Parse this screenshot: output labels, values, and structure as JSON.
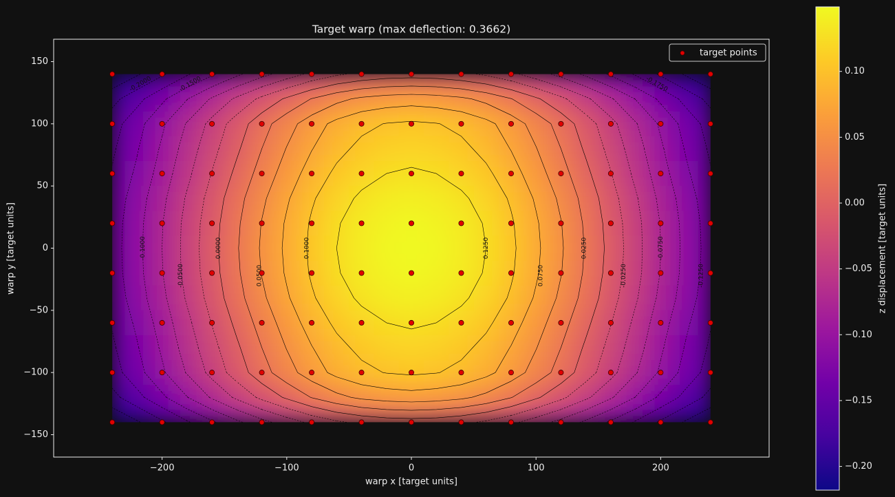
{
  "chart_data": {
    "type": "contour",
    "title": "Target warp  (max deflection: 0.3662)",
    "xlabel": "warp x [target units]",
    "ylabel": "warp y [target units]",
    "xlim": [
      -287,
      287
    ],
    "ylim": [
      -168,
      168
    ],
    "xticks": [
      {
        "value": -200,
        "label": "−200"
      },
      {
        "value": -100,
        "label": "−100"
      },
      0,
      100,
      200
    ],
    "yticks": [
      {
        "value": -150,
        "label": "−150"
      },
      {
        "value": -100,
        "label": "−100"
      },
      {
        "value": -50,
        "label": "−50"
      },
      0,
      50,
      100,
      150
    ],
    "legend": "upper right",
    "heatmap": {
      "x": [
        -240,
        -220,
        -200,
        -180,
        -160,
        -140,
        -120,
        -100,
        -80,
        -60,
        -40,
        -20,
        0,
        20,
        40,
        60,
        80,
        100,
        120,
        140,
        160,
        180,
        200,
        220,
        240
      ],
      "y": [
        140,
        120,
        100,
        80,
        60,
        40,
        20,
        0,
        -20,
        -40,
        -60,
        -80,
        -100,
        -120,
        -140
      ],
      "values": [
        [
          -0.224,
          -0.203,
          -0.179,
          -0.153,
          -0.129,
          -0.105,
          -0.083,
          -0.063,
          -0.044,
          -0.029,
          -0.019,
          -0.013,
          -0.011,
          -0.013,
          -0.019,
          -0.029,
          -0.044,
          -0.063,
          -0.083,
          -0.105,
          -0.129,
          -0.153,
          -0.179,
          -0.203,
          -0.224
        ],
        [
          -0.183,
          -0.158,
          -0.13,
          -0.101,
          -0.072,
          -0.045,
          -0.019,
          0.004,
          0.026,
          0.043,
          0.055,
          0.061,
          0.064,
          0.061,
          0.055,
          0.043,
          0.026,
          0.004,
          -0.019,
          -0.045,
          -0.072,
          -0.101,
          -0.13,
          -0.158,
          -0.183
        ],
        [
          -0.161,
          -0.134,
          -0.104,
          -0.073,
          -0.042,
          -0.013,
          0.015,
          0.04,
          0.063,
          0.082,
          0.094,
          0.101,
          0.104,
          0.101,
          0.094,
          0.082,
          0.063,
          0.04,
          0.015,
          -0.013,
          -0.042,
          -0.073,
          -0.104,
          -0.134,
          -0.161
        ],
        [
          -0.154,
          -0.127,
          -0.096,
          -0.064,
          -0.033,
          -0.004,
          0.025,
          0.051,
          0.074,
          0.093,
          0.106,
          0.113,
          0.116,
          0.113,
          0.106,
          0.093,
          0.074,
          0.051,
          0.025,
          -0.004,
          -0.033,
          -0.064,
          -0.096,
          -0.127,
          -0.154
        ],
        [
          -0.148,
          -0.12,
          -0.089,
          -0.056,
          -0.024,
          0.006,
          0.035,
          0.061,
          0.086,
          0.105,
          0.117,
          0.125,
          0.128,
          0.125,
          0.117,
          0.105,
          0.086,
          0.061,
          0.035,
          0.006,
          -0.024,
          -0.056,
          -0.089,
          -0.12,
          -0.148
        ],
        [
          -0.141,
          -0.112,
          -0.081,
          -0.047,
          -0.015,
          0.016,
          0.045,
          0.072,
          0.097,
          0.116,
          0.129,
          0.137,
          0.14,
          0.137,
          0.129,
          0.116,
          0.097,
          0.072,
          0.045,
          0.016,
          -0.015,
          -0.047,
          -0.081,
          -0.112,
          -0.141
        ],
        [
          -0.137,
          -0.108,
          -0.076,
          -0.042,
          -0.01,
          0.021,
          0.051,
          0.078,
          0.103,
          0.123,
          0.136,
          0.144,
          0.147,
          0.144,
          0.136,
          0.123,
          0.103,
          0.078,
          0.051,
          0.021,
          -0.01,
          -0.042,
          -0.076,
          -0.108,
          -0.137
        ],
        [
          -0.136,
          -0.107,
          -0.075,
          -0.041,
          -0.008,
          0.023,
          0.053,
          0.08,
          0.105,
          0.125,
          0.138,
          0.146,
          0.149,
          0.146,
          0.138,
          0.125,
          0.105,
          0.08,
          0.053,
          0.023,
          -0.008,
          -0.041,
          -0.075,
          -0.107,
          -0.136
        ],
        [
          -0.137,
          -0.108,
          -0.076,
          -0.042,
          -0.01,
          0.021,
          0.051,
          0.078,
          0.103,
          0.123,
          0.136,
          0.144,
          0.147,
          0.144,
          0.136,
          0.123,
          0.103,
          0.078,
          0.051,
          0.021,
          -0.01,
          -0.042,
          -0.076,
          -0.108,
          -0.137
        ],
        [
          -0.141,
          -0.112,
          -0.081,
          -0.047,
          -0.015,
          0.016,
          0.045,
          0.072,
          0.097,
          0.116,
          0.129,
          0.137,
          0.14,
          0.137,
          0.129,
          0.116,
          0.097,
          0.072,
          0.045,
          0.016,
          -0.015,
          -0.047,
          -0.081,
          -0.112,
          -0.141
        ],
        [
          -0.148,
          -0.12,
          -0.089,
          -0.056,
          -0.024,
          0.006,
          0.035,
          0.061,
          0.086,
          0.105,
          0.117,
          0.125,
          0.128,
          0.125,
          0.117,
          0.105,
          0.086,
          0.061,
          0.035,
          0.006,
          -0.024,
          -0.056,
          -0.089,
          -0.12,
          -0.148
        ],
        [
          -0.154,
          -0.127,
          -0.096,
          -0.064,
          -0.033,
          -0.004,
          0.025,
          0.051,
          0.074,
          0.093,
          0.106,
          0.113,
          0.116,
          0.113,
          0.106,
          0.093,
          0.074,
          0.051,
          0.025,
          -0.004,
          -0.033,
          -0.064,
          -0.096,
          -0.127,
          -0.154
        ],
        [
          -0.161,
          -0.134,
          -0.104,
          -0.073,
          -0.042,
          -0.013,
          0.015,
          0.04,
          0.063,
          0.082,
          0.094,
          0.101,
          0.104,
          0.101,
          0.094,
          0.082,
          0.063,
          0.04,
          0.015,
          -0.013,
          -0.042,
          -0.073,
          -0.104,
          -0.134,
          -0.161
        ],
        [
          -0.183,
          -0.158,
          -0.13,
          -0.101,
          -0.072,
          -0.045,
          -0.019,
          0.004,
          0.026,
          0.043,
          0.055,
          0.061,
          0.064,
          0.061,
          0.055,
          0.043,
          0.026,
          0.004,
          -0.019,
          -0.045,
          -0.072,
          -0.101,
          -0.13,
          -0.158,
          -0.183
        ],
        [
          -0.224,
          -0.203,
          -0.179,
          -0.153,
          -0.129,
          -0.105,
          -0.083,
          -0.063,
          -0.044,
          -0.029,
          -0.019,
          -0.013,
          -0.011,
          -0.013,
          -0.019,
          -0.029,
          -0.044,
          -0.063,
          -0.083,
          -0.105,
          -0.129,
          -0.153,
          -0.179,
          -0.203,
          -0.224
        ]
      ],
      "colormap": [
        "#0d0887",
        "#46039f",
        "#7201a8",
        "#9c179e",
        "#bd3786",
        "#d8576b",
        "#ed7953",
        "#fb9f3a",
        "#fdca26",
        "#f0f921"
      ],
      "clim": [
        -0.218,
        0.149
      ],
      "colorbar_label": "z displacement [target units]",
      "colorbar_ticks": [
        {
          "value": -0.2,
          "label": "−0.20"
        },
        {
          "value": -0.15,
          "label": "−0.15"
        },
        {
          "value": -0.1,
          "label": "−0.10"
        },
        {
          "value": -0.05,
          "label": "−0.05"
        },
        {
          "value": 0,
          "label": "0.00"
        },
        {
          "value": 0.05,
          "label": "0.05"
        },
        {
          "value": 0.1,
          "label": "0.10"
        }
      ]
    },
    "contour_levels": [
      {
        "value": -0.2,
        "label": "-0.2000"
      },
      {
        "value": -0.175,
        "label": "-0.1750"
      },
      {
        "value": -0.15,
        "label": "-0.1500"
      },
      {
        "value": -0.125,
        "label": "-0.1250"
      },
      {
        "value": -0.1,
        "label": "-0.1000"
      },
      {
        "value": -0.075,
        "label": "-0.0750"
      },
      {
        "value": -0.05,
        "label": "-0.0500"
      },
      {
        "value": -0.025,
        "label": "-0.0250"
      },
      {
        "value": 0,
        "label": "0.0000"
      },
      {
        "value": 0.025,
        "label": "0.0250"
      },
      {
        "value": 0.05,
        "label": "0.0500"
      },
      {
        "value": 0.075,
        "label": "0.0750"
      },
      {
        "value": 0.1,
        "label": "0.1000"
      },
      {
        "value": 0.125,
        "label": "0.1250"
      }
    ],
    "contour_color": "#000000",
    "series": [
      {
        "name": "target points",
        "color": "#e00000",
        "edgecolor": "#3a0000",
        "x": [
          -240,
          -200,
          -160,
          -120,
          -80,
          -40,
          0,
          40,
          80,
          120,
          160,
          200,
          240,
          -240,
          -200,
          -160,
          -120,
          -80,
          -40,
          0,
          40,
          80,
          120,
          160,
          200,
          240,
          -240,
          -200,
          -160,
          -120,
          -80,
          -40,
          0,
          40,
          80,
          120,
          160,
          200,
          240,
          -240,
          -200,
          -160,
          -120,
          -80,
          -40,
          0,
          40,
          80,
          120,
          160,
          200,
          240,
          -240,
          -200,
          -160,
          -120,
          -80,
          -40,
          0,
          40,
          80,
          120,
          160,
          200,
          240,
          -240,
          -200,
          -160,
          -120,
          -80,
          -40,
          0,
          40,
          80,
          120,
          160,
          200,
          240,
          -240,
          -200,
          -160,
          -120,
          -80,
          -40,
          0,
          40,
          80,
          120,
          160,
          200,
          240,
          -240,
          -200,
          -160,
          -120,
          -80,
          -40,
          0,
          40,
          80,
          120,
          160,
          200,
          240
        ],
        "y": [
          140,
          140,
          140,
          140,
          140,
          140,
          140,
          140,
          140,
          140,
          140,
          140,
          140,
          100,
          100,
          100,
          100,
          100,
          100,
          100,
          100,
          100,
          100,
          100,
          100,
          100,
          60,
          60,
          60,
          60,
          60,
          60,
          60,
          60,
          60,
          60,
          60,
          60,
          60,
          20,
          20,
          20,
          20,
          20,
          20,
          20,
          20,
          20,
          20,
          20,
          20,
          20,
          -20,
          -20,
          -20,
          -20,
          -20,
          -20,
          -20,
          -20,
          -20,
          -20,
          -20,
          -20,
          -20,
          -60,
          -60,
          -60,
          -60,
          -60,
          -60,
          -60,
          -60,
          -60,
          -60,
          -60,
          -60,
          -60,
          -100,
          -100,
          -100,
          -100,
          -100,
          -100,
          -100,
          -100,
          -100,
          -100,
          -100,
          -100,
          -100,
          -140,
          -140,
          -140,
          -140,
          -140,
          -140,
          -140,
          -140,
          -140,
          -140,
          -140,
          -140,
          -140
        ]
      }
    ]
  }
}
